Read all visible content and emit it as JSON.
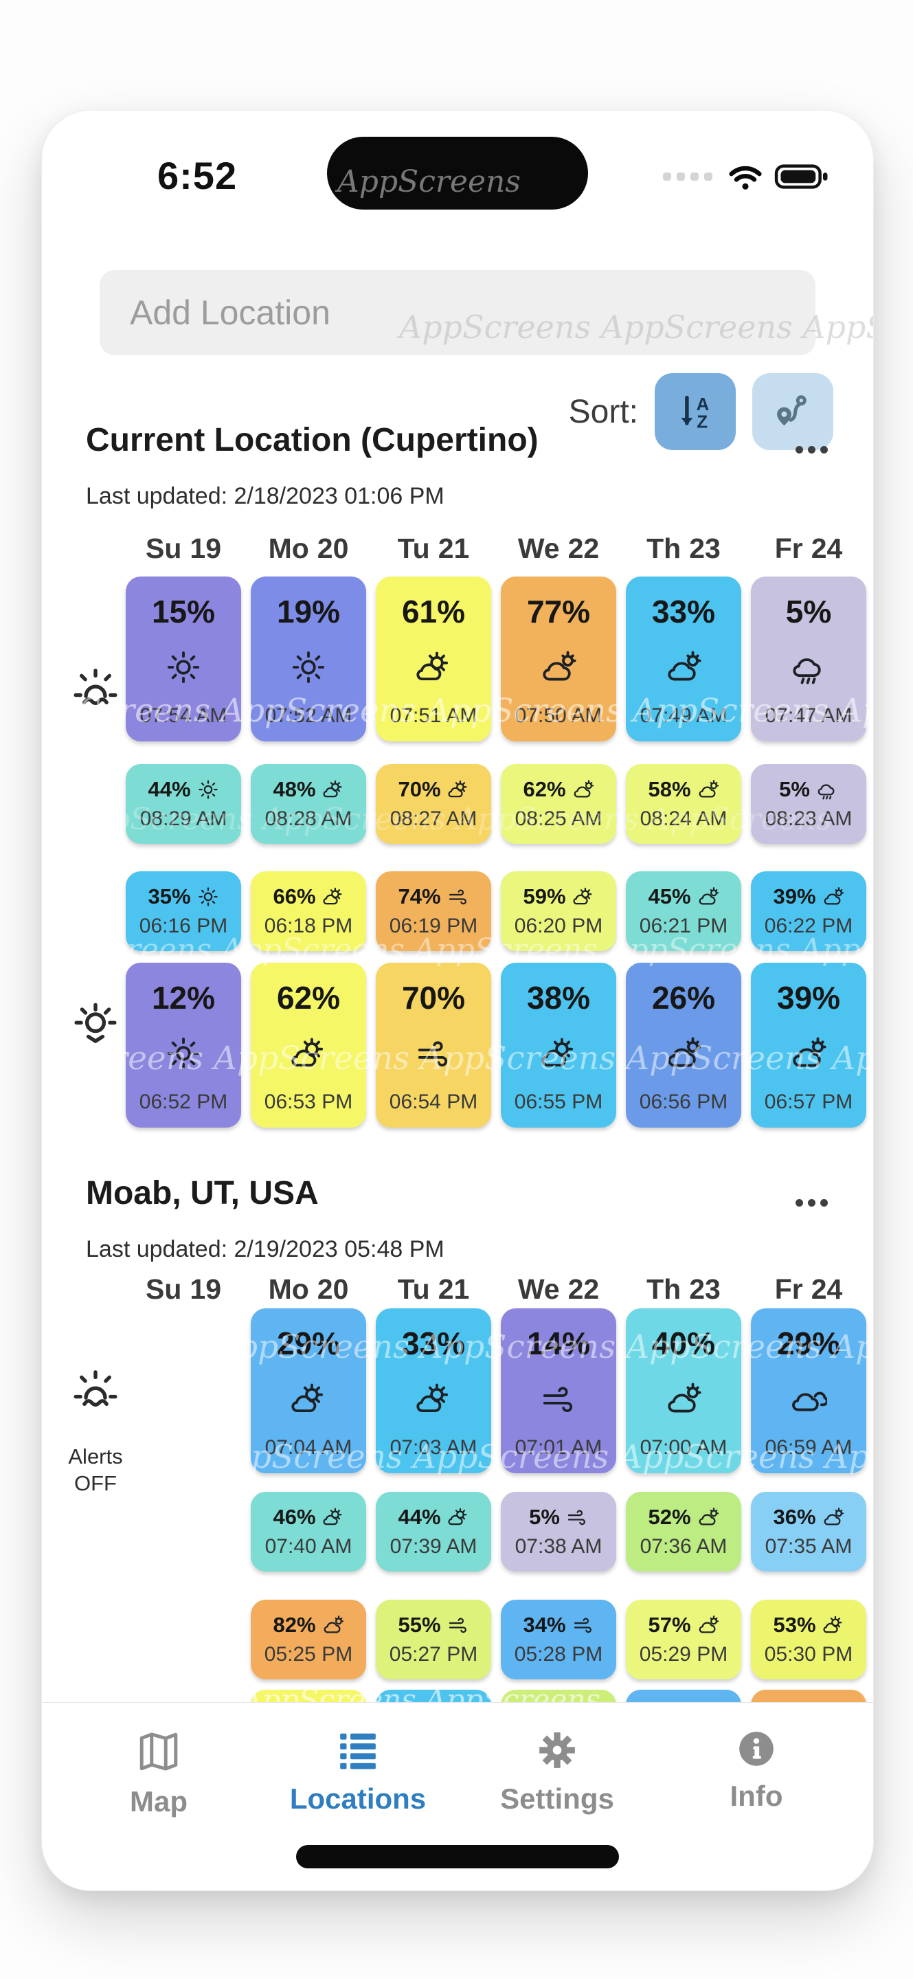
{
  "status": {
    "time": "6:52"
  },
  "watermark": {
    "text": "AppScreens"
  },
  "search": {
    "placeholder": "Add Location"
  },
  "sort": {
    "label": "Sort:"
  },
  "tabbar": {
    "items": [
      {
        "label": "Map",
        "icon": "map",
        "active": false
      },
      {
        "label": "Locations",
        "icon": "list",
        "active": true
      },
      {
        "label": "Settings",
        "icon": "gear",
        "active": false
      },
      {
        "label": "Info",
        "icon": "info",
        "active": false
      }
    ]
  },
  "locations": [
    {
      "name": "Current Location (Cupertino)",
      "last_updated": "Last updated: 2/18/2023 01:06 PM",
      "days": [
        "Su 19",
        "Mo 20",
        "Tu 21",
        "We 22",
        "Th 23",
        "Fr 24"
      ],
      "rows": [
        {
          "kind": "big",
          "cells": [
            {
              "col": 0,
              "bg": "#8c86de",
              "pct": "15%",
              "icon": "sun",
              "time": "07:54 AM"
            },
            {
              "col": 1,
              "bg": "#7d8ce6",
              "pct": "19%",
              "icon": "sun",
              "time": "07:52 AM"
            },
            {
              "col": 2,
              "bg": "#f5f767",
              "pct": "61%",
              "icon": "sun-cloud",
              "time": "07:51 AM"
            },
            {
              "col": 3,
              "bg": "#f2b25c",
              "pct": "77%",
              "icon": "cloud-sun",
              "time": "07:50 AM"
            },
            {
              "col": 4,
              "bg": "#4dc4f0",
              "pct": "33%",
              "icon": "cloud-sun",
              "time": "07:49 AM"
            },
            {
              "col": 5,
              "bg": "#c6c2df",
              "pct": "5%",
              "icon": "rain",
              "time": "07:47 AM"
            }
          ]
        },
        {
          "kind": "small",
          "cells": [
            {
              "col": 0,
              "bg": "#7ddcd3",
              "pct": "44%",
              "icon": "sun",
              "time": "08:29 AM"
            },
            {
              "col": 1,
              "bg": "#7ddcd3",
              "pct": "48%",
              "icon": "sun-cloud",
              "time": "08:28 AM"
            },
            {
              "col": 2,
              "bg": "#f6d563",
              "pct": "70%",
              "icon": "sun-cloud",
              "time": "08:27 AM"
            },
            {
              "col": 3,
              "bg": "#eaf77c",
              "pct": "62%",
              "icon": "cloud-sun",
              "time": "08:25 AM"
            },
            {
              "col": 4,
              "bg": "#eaf77c",
              "pct": "58%",
              "icon": "cloud-sun",
              "time": "08:24 AM"
            },
            {
              "col": 5,
              "bg": "#c6c2df",
              "pct": "5%",
              "icon": "rain",
              "time": "08:23 AM"
            }
          ]
        },
        {
          "kind": "small",
          "cells": [
            {
              "col": 0,
              "bg": "#4dc4f0",
              "pct": "35%",
              "icon": "sun",
              "time": "06:16 PM"
            },
            {
              "col": 1,
              "bg": "#f5f767",
              "pct": "66%",
              "icon": "sun-cloud",
              "time": "06:18 PM"
            },
            {
              "col": 2,
              "bg": "#f2b25c",
              "pct": "74%",
              "icon": "wind",
              "time": "06:19 PM"
            },
            {
              "col": 3,
              "bg": "#eaf77c",
              "pct": "59%",
              "icon": "sun-cloud",
              "time": "06:20 PM"
            },
            {
              "col": 4,
              "bg": "#7ddcd3",
              "pct": "45%",
              "icon": "cloud-sun",
              "time": "06:21 PM"
            },
            {
              "col": 5,
              "bg": "#4dc4f0",
              "pct": "39%",
              "icon": "cloud-sun",
              "time": "06:22 PM"
            }
          ]
        },
        {
          "kind": "big",
          "cells": [
            {
              "col": 0,
              "bg": "#8c86de",
              "pct": "12%",
              "icon": "sun",
              "time": "06:52 PM"
            },
            {
              "col": 1,
              "bg": "#f5f767",
              "pct": "62%",
              "icon": "sun-cloud",
              "time": "06:53 PM"
            },
            {
              "col": 2,
              "bg": "#f6d563",
              "pct": "70%",
              "icon": "wind",
              "time": "06:54 PM"
            },
            {
              "col": 3,
              "bg": "#4dc4f0",
              "pct": "38%",
              "icon": "sun-cloud",
              "time": "06:55 PM"
            },
            {
              "col": 4,
              "bg": "#6b9be8",
              "pct": "26%",
              "icon": "cloud-sun",
              "time": "06:56 PM"
            },
            {
              "col": 5,
              "bg": "#4dc4f0",
              "pct": "39%",
              "icon": "cloud-sun",
              "time": "06:57 PM"
            }
          ]
        }
      ]
    },
    {
      "name": "Moab, UT, USA",
      "last_updated": "Last updated: 2/19/2023 05:48 PM",
      "days": [
        "Su 19",
        "Mo 20",
        "Tu 21",
        "We 22",
        "Th 23",
        "Fr 24"
      ],
      "alerts": "Alerts OFF",
      "rows": [
        {
          "kind": "big",
          "cells": [
            {
              "col": 1,
              "bg": "#5fb4f2",
              "pct": "29%",
              "icon": "sun-cloud",
              "time": "07:04 AM"
            },
            {
              "col": 2,
              "bg": "#4dc4f0",
              "pct": "33%",
              "icon": "sun-cloud",
              "time": "07:03 AM"
            },
            {
              "col": 3,
              "bg": "#8c86de",
              "pct": "14%",
              "icon": "wind",
              "time": "07:01 AM"
            },
            {
              "col": 4,
              "bg": "#6fd8e6",
              "pct": "40%",
              "icon": "cloud-sun",
              "time": "07:00 AM"
            },
            {
              "col": 5,
              "bg": "#5fb4f2",
              "pct": "29%",
              "icon": "clouds",
              "time": "06:59 AM"
            }
          ]
        },
        {
          "kind": "small",
          "cells": [
            {
              "col": 1,
              "bg": "#7ddcd3",
              "pct": "46%",
              "icon": "sun-cloud",
              "time": "07:40 AM"
            },
            {
              "col": 2,
              "bg": "#7ddcd3",
              "pct": "44%",
              "icon": "sun-cloud",
              "time": "07:39 AM"
            },
            {
              "col": 3,
              "bg": "#c6c2df",
              "pct": "5%",
              "icon": "wind",
              "time": "07:38 AM"
            },
            {
              "col": 4,
              "bg": "#bcec82",
              "pct": "52%",
              "icon": "cloud-sun",
              "time": "07:36 AM"
            },
            {
              "col": 5,
              "bg": "#88cff5",
              "pct": "36%",
              "icon": "cloud-sun",
              "time": "07:35 AM"
            }
          ]
        },
        {
          "kind": "small",
          "cells": [
            {
              "col": 1,
              "bg": "#f2ac5c",
              "pct": "82%",
              "icon": "cloud-sun",
              "time": "05:25 PM"
            },
            {
              "col": 2,
              "bg": "#ddf27a",
              "pct": "55%",
              "icon": "wind",
              "time": "05:27 PM"
            },
            {
              "col": 3,
              "bg": "#5fb4f2",
              "pct": "34%",
              "icon": "wind",
              "time": "05:28 PM"
            },
            {
              "col": 4,
              "bg": "#eaf77c",
              "pct": "57%",
              "icon": "cloud-sun",
              "time": "05:29 PM"
            },
            {
              "col": 5,
              "bg": "#edf56e",
              "pct": "53%",
              "icon": "sun-cloud",
              "time": "05:30 PM"
            }
          ]
        },
        {
          "kind": "partial",
          "cells": [
            {
              "col": 1,
              "bg": "#f5f767"
            },
            {
              "col": 2,
              "bg": "#4dc4f0"
            },
            {
              "col": 3,
              "bg": "#cdef7a"
            },
            {
              "col": 4,
              "bg": "#5fb4f2"
            },
            {
              "col": 5,
              "bg": "#f2ac5c"
            }
          ]
        }
      ]
    }
  ]
}
